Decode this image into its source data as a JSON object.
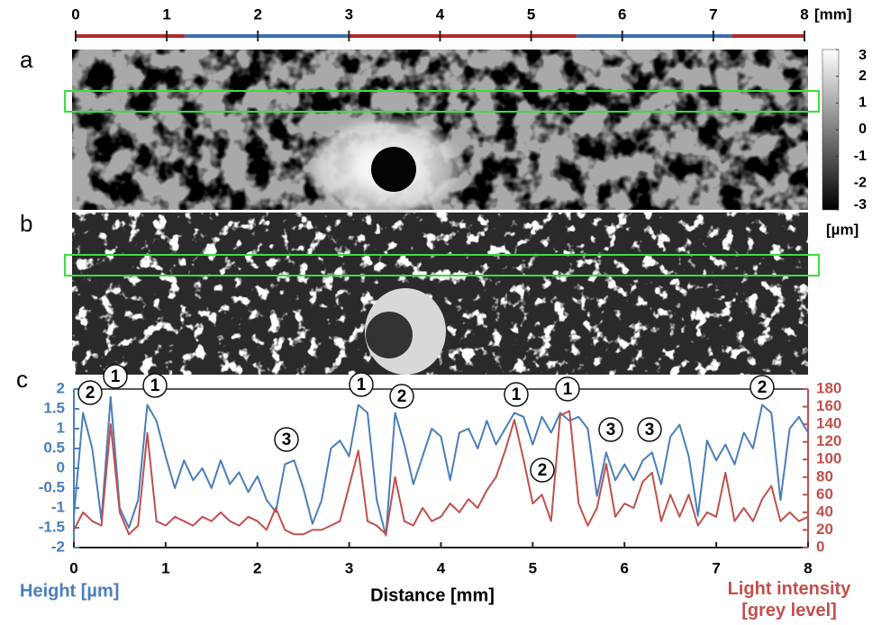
{
  "panel_labels": [
    "a",
    "b",
    "c"
  ],
  "scale_bar": {
    "xlim": [
      0,
      8
    ],
    "xticks": [
      0,
      1,
      2,
      3,
      4,
      5,
      6,
      7,
      8
    ],
    "unit": "[mm]",
    "segments": [
      {
        "from": 0,
        "to": 1.2,
        "color": "#b22a2a"
      },
      {
        "from": 1.2,
        "to": 3,
        "color": "#3b6fb0"
      },
      {
        "from": 3,
        "to": 5.5,
        "color": "#b22a2a"
      },
      {
        "from": 5.5,
        "to": 7.2,
        "color": "#3b6fb0"
      },
      {
        "from": 7.2,
        "to": 8,
        "color": "#b22a2a"
      }
    ]
  },
  "colorbar": {
    "ylim": [
      -3,
      3
    ],
    "yticks": [
      3,
      2,
      1,
      0,
      -1,
      -2,
      -3
    ],
    "unit": "[µm]"
  },
  "chart_data": {
    "type": "line",
    "xlabel": "Distance [mm]",
    "xlim": [
      0,
      8
    ],
    "xticks": [
      0,
      1,
      2,
      3,
      4,
      5,
      6,
      7,
      8
    ],
    "ylim": [
      -2,
      2
    ],
    "yticks": [
      -2,
      -1.5,
      -1,
      -0.5,
      0,
      0.5,
      1,
      1.5,
      2
    ],
    "y2lim": [
      0,
      180
    ],
    "y2ticks": [
      0,
      20,
      40,
      60,
      80,
      100,
      120,
      140,
      160,
      180
    ],
    "x": [
      0,
      0.1,
      0.2,
      0.3,
      0.4,
      0.5,
      0.6,
      0.7,
      0.8,
      0.9,
      1,
      1.1,
      1.2,
      1.3,
      1.4,
      1.5,
      1.6,
      1.7,
      1.8,
      1.9,
      2,
      2.1,
      2.2,
      2.3,
      2.4,
      2.5,
      2.6,
      2.7,
      2.8,
      2.9,
      3,
      3.1,
      3.2,
      3.3,
      3.4,
      3.5,
      3.6,
      3.7,
      3.8,
      3.9,
      4,
      4.1,
      4.2,
      4.3,
      4.4,
      4.5,
      4.6,
      4.7,
      4.8,
      4.9,
      5,
      5.1,
      5.2,
      5.3,
      5.4,
      5.5,
      5.6,
      5.7,
      5.8,
      5.9,
      6,
      6.1,
      6.2,
      6.3,
      6.4,
      6.5,
      6.6,
      6.7,
      6.8,
      6.9,
      7,
      7.1,
      7.2,
      7.3,
      7.4,
      7.5,
      7.6,
      7.7,
      7.8,
      7.9,
      8
    ],
    "series": [
      {
        "name": "Height [µm]",
        "color": "#4a7ebb",
        "values": [
          -1.2,
          1.4,
          0.5,
          -1.3,
          1.8,
          -1.0,
          -1.5,
          -0.8,
          1.6,
          1.2,
          0.3,
          -0.5,
          0.2,
          -0.3,
          0.0,
          -0.5,
          0.2,
          -0.4,
          -0.1,
          -0.6,
          -0.2,
          -0.8,
          -1.1,
          0.1,
          0.2,
          -0.5,
          -1.4,
          -0.8,
          0.5,
          0.7,
          0.3,
          1.6,
          1.4,
          -0.8,
          -1.7,
          1.4,
          0.6,
          -0.4,
          0.3,
          1.0,
          0.8,
          -0.3,
          0.9,
          1.0,
          0.5,
          1.2,
          0.6,
          1.0,
          1.4,
          1.3,
          0.6,
          1.3,
          0.9,
          1.4,
          1.2,
          1.3,
          1.0,
          -0.7,
          0.4,
          -0.3,
          0.1,
          -0.3,
          0.2,
          0.4,
          -0.4,
          0.8,
          1.1,
          0.3,
          -1.2,
          0.7,
          0.2,
          0.6,
          0.1,
          0.9,
          0.5,
          1.6,
          1.4,
          -0.8,
          1.0,
          1.3,
          0.9
        ]
      },
      {
        "name": "Light intensity [grey level]",
        "color": "#c0504d",
        "axis": "y2",
        "values": [
          20,
          40,
          30,
          25,
          140,
          40,
          15,
          25,
          130,
          30,
          25,
          35,
          30,
          25,
          35,
          30,
          40,
          30,
          25,
          35,
          30,
          20,
          45,
          20,
          15,
          15,
          20,
          20,
          25,
          30,
          70,
          110,
          30,
          25,
          15,
          80,
          30,
          25,
          45,
          30,
          35,
          50,
          40,
          55,
          45,
          65,
          80,
          110,
          145,
          100,
          50,
          60,
          30,
          150,
          155,
          50,
          25,
          45,
          95,
          35,
          50,
          45,
          75,
          85,
          30,
          60,
          35,
          60,
          25,
          40,
          35,
          85,
          30,
          45,
          30,
          55,
          70,
          30,
          40,
          30,
          35
        ]
      }
    ],
    "annotations": [
      "2",
      "1",
      "1",
      "3",
      "1",
      "2",
      "1",
      "1",
      "2",
      "3",
      "3",
      "2"
    ]
  }
}
